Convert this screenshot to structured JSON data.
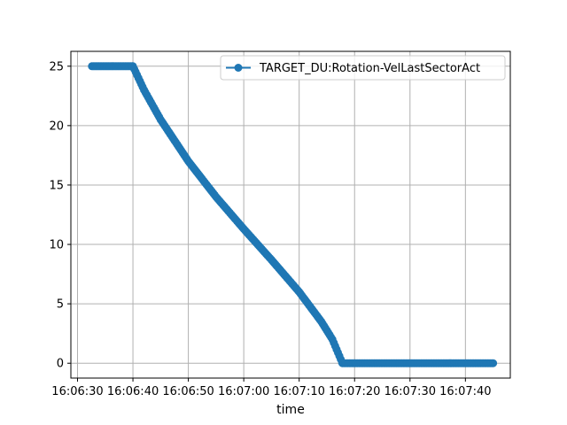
{
  "chart_data": {
    "type": "line",
    "title": "",
    "xlabel": "time",
    "ylabel": "",
    "x_ticks": [
      "16:06:30",
      "16:06:40",
      "16:06:50",
      "16:07:00",
      "16:07:10",
      "16:07:20",
      "16:07:30",
      "16:07:40"
    ],
    "xlim": [
      "16:06:28.8",
      "16:07:48.1"
    ],
    "ylim": [
      -1.25,
      26.25
    ],
    "y_ticks": [
      0,
      5,
      10,
      15,
      20,
      25
    ],
    "grid": true,
    "legend_position": "top-right",
    "series": [
      {
        "name": "TARGET_DU:Rotation-VelLastSectorAct",
        "color": "#1f77b4",
        "marker": "circle",
        "points": [
          [
            "16:06:32.6",
            25.0
          ],
          [
            "16:06:40.0",
            25.0
          ],
          [
            "16:06:42.0",
            23.0
          ],
          [
            "16:06:45.0",
            20.5
          ],
          [
            "16:06:50.0",
            17.0
          ],
          [
            "16:06:55.0",
            14.0
          ],
          [
            "16:07:00.0",
            11.3
          ],
          [
            "16:07:05.0",
            8.7
          ],
          [
            "16:07:10.0",
            6.0
          ],
          [
            "16:07:14.0",
            3.5
          ],
          [
            "16:07:16.0",
            2.0
          ],
          [
            "16:07:17.8",
            0.0
          ],
          [
            "16:07:30.0",
            0.0
          ],
          [
            "16:07:45.0",
            0.0
          ]
        ]
      }
    ]
  }
}
